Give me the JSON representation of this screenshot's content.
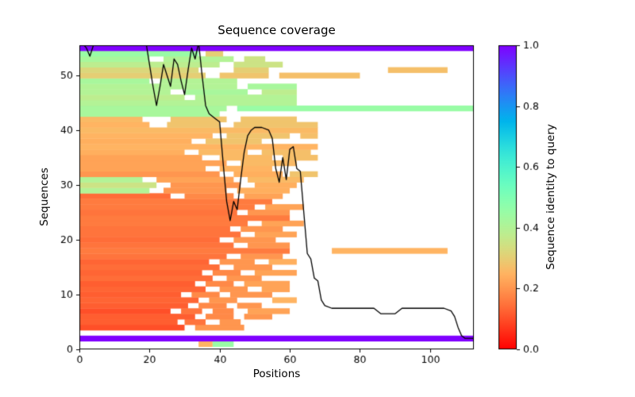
{
  "chart_data": {
    "type": "heatmap",
    "title": "Sequence coverage",
    "xlabel": "Positions",
    "ylabel": "Sequences",
    "xlim": [
      0,
      112.5
    ],
    "ylim": [
      0,
      55.5
    ],
    "xticks": [
      0,
      20,
      40,
      60,
      80,
      100
    ],
    "yticks": [
      0,
      10,
      20,
      30,
      40,
      50
    ],
    "grid": false,
    "colorbar": {
      "label": "Sequence identity to query",
      "ticks": [
        0.0,
        0.2,
        0.4,
        0.6,
        0.8,
        1.0
      ],
      "range": [
        0,
        1
      ],
      "colormap": "rainbow_r"
    },
    "line": {
      "name": "coverage",
      "color": "#000000",
      "points": [
        [
          0,
          56.5
        ],
        [
          2,
          55
        ],
        [
          3,
          53.5
        ],
        [
          4,
          55.5
        ],
        [
          6,
          56.5
        ],
        [
          8,
          57
        ],
        [
          10,
          56.5
        ],
        [
          12,
          57
        ],
        [
          14,
          56.5
        ],
        [
          16,
          57
        ],
        [
          18,
          56.5
        ],
        [
          19,
          56
        ],
        [
          20,
          52
        ],
        [
          21,
          48
        ],
        [
          22,
          44.5
        ],
        [
          23,
          48
        ],
        [
          24,
          52
        ],
        [
          25,
          50
        ],
        [
          26,
          48
        ],
        [
          27,
          53
        ],
        [
          28,
          52
        ],
        [
          29,
          49
        ],
        [
          30,
          46.5
        ],
        [
          31,
          51
        ],
        [
          32,
          55
        ],
        [
          33,
          53
        ],
        [
          34,
          56
        ],
        [
          35,
          50
        ],
        [
          36,
          44.5
        ],
        [
          37,
          43
        ],
        [
          38,
          42.5
        ],
        [
          39,
          42
        ],
        [
          40,
          41.5
        ],
        [
          41,
          34
        ],
        [
          42,
          27
        ],
        [
          43,
          23.5
        ],
        [
          44,
          27
        ],
        [
          45,
          25.5
        ],
        [
          46,
          31
        ],
        [
          47,
          36
        ],
        [
          48,
          39
        ],
        [
          49,
          40
        ],
        [
          50,
          40.5
        ],
        [
          52,
          40.5
        ],
        [
          54,
          40
        ],
        [
          55,
          38.5
        ],
        [
          56,
          33
        ],
        [
          57,
          30.5
        ],
        [
          58,
          35
        ],
        [
          59,
          31
        ],
        [
          60,
          36.5
        ],
        [
          61,
          37
        ],
        [
          62,
          33
        ],
        [
          63,
          32.5
        ],
        [
          64,
          25
        ],
        [
          65,
          17.5
        ],
        [
          66,
          16.5
        ],
        [
          67,
          13
        ],
        [
          68,
          12.5
        ],
        [
          69,
          9
        ],
        [
          70,
          8
        ],
        [
          72,
          7.5
        ],
        [
          75,
          7.5
        ],
        [
          80,
          7.5
        ],
        [
          84,
          7.5
        ],
        [
          85,
          7
        ],
        [
          86,
          6.5
        ],
        [
          88,
          6.5
        ],
        [
          90,
          6.5
        ],
        [
          91,
          7
        ],
        [
          92,
          7.5
        ],
        [
          95,
          7.5
        ],
        [
          100,
          7.5
        ],
        [
          104,
          7.5
        ],
        [
          106,
          7
        ],
        [
          107,
          6
        ],
        [
          108,
          4
        ],
        [
          109,
          2.5
        ],
        [
          110,
          2
        ],
        [
          112.5,
          2
        ]
      ]
    },
    "rows": [
      {
        "y": 1,
        "segments": [
          [
            34,
            38,
            0.25
          ],
          [
            38,
            44,
            0.45
          ]
        ]
      },
      {
        "y": 2,
        "segments": [
          [
            0,
            112.5,
            1.0
          ]
        ]
      },
      {
        "y": 4,
        "segments": [
          [
            0,
            30,
            0.1
          ],
          [
            33,
            47,
            0.2
          ]
        ]
      },
      {
        "y": 5,
        "segments": [
          [
            0,
            28,
            0.12
          ],
          [
            30,
            36,
            0.15
          ],
          [
            40,
            46,
            0.2
          ]
        ]
      },
      {
        "y": 6,
        "segments": [
          [
            0,
            33,
            0.12
          ],
          [
            36,
            44,
            0.18
          ],
          [
            47,
            55,
            0.2
          ]
        ]
      },
      {
        "y": 7,
        "segments": [
          [
            0,
            26,
            0.1
          ],
          [
            29,
            35,
            0.15
          ],
          [
            38,
            44,
            0.18
          ],
          [
            48,
            60,
            0.22
          ]
        ]
      },
      {
        "y": 8,
        "segments": [
          [
            0,
            31,
            0.12
          ],
          [
            34,
            42,
            0.18
          ],
          [
            45,
            52,
            0.2
          ]
        ]
      },
      {
        "y": 9,
        "segments": [
          [
            0,
            34,
            0.13
          ],
          [
            37,
            45,
            0.2
          ],
          [
            55,
            62,
            0.25
          ]
        ]
      },
      {
        "y": 10,
        "segments": [
          [
            0,
            29,
            0.12
          ],
          [
            32,
            40,
            0.18
          ],
          [
            43,
            55,
            0.2
          ]
        ]
      },
      {
        "y": 11,
        "segments": [
          [
            0,
            36,
            0.13
          ],
          [
            40,
            48,
            0.2
          ],
          [
            52,
            60,
            0.22
          ]
        ]
      },
      {
        "y": 12,
        "segments": [
          [
            0,
            33,
            0.12
          ],
          [
            36,
            44,
            0.18
          ],
          [
            47,
            60,
            0.22
          ]
        ]
      },
      {
        "y": 13,
        "segments": [
          [
            0,
            38,
            0.14
          ],
          [
            42,
            52,
            0.2
          ]
        ]
      },
      {
        "y": 14,
        "segments": [
          [
            0,
            35,
            0.13
          ],
          [
            38,
            46,
            0.18
          ],
          [
            50,
            62,
            0.22
          ]
        ]
      },
      {
        "y": 15,
        "segments": [
          [
            0,
            40,
            0.14
          ],
          [
            44,
            55,
            0.2
          ]
        ]
      },
      {
        "y": 16,
        "segments": [
          [
            0,
            37,
            0.13
          ],
          [
            40,
            50,
            0.2
          ],
          [
            54,
            62,
            0.24
          ]
        ]
      },
      {
        "y": 17,
        "segments": [
          [
            0,
            42,
            0.15
          ],
          [
            46,
            58,
            0.2
          ]
        ]
      },
      {
        "y": 18,
        "segments": [
          [
            0,
            60,
            0.16
          ],
          [
            72,
            105,
            0.25
          ]
        ]
      },
      {
        "y": 19,
        "segments": [
          [
            0,
            44,
            0.15
          ],
          [
            48,
            60,
            0.2
          ]
        ]
      },
      {
        "y": 20,
        "segments": [
          [
            0,
            40,
            0.14
          ],
          [
            44,
            56,
            0.2
          ]
        ]
      },
      {
        "y": 21,
        "segments": [
          [
            0,
            46,
            0.15
          ],
          [
            50,
            62,
            0.22
          ]
        ]
      },
      {
        "y": 22,
        "segments": [
          [
            0,
            43,
            0.15
          ],
          [
            46,
            58,
            0.2
          ]
        ]
      },
      {
        "y": 23,
        "segments": [
          [
            0,
            48,
            0.16
          ],
          [
            52,
            64,
            0.22
          ]
        ]
      },
      {
        "y": 24,
        "segments": [
          [
            0,
            60,
            0.16
          ]
        ]
      },
      {
        "y": 25,
        "segments": [
          [
            0,
            45,
            0.15
          ],
          [
            48,
            60,
            0.2
          ]
        ]
      },
      {
        "y": 26,
        "segments": [
          [
            0,
            50,
            0.16
          ],
          [
            53,
            64,
            0.22
          ]
        ]
      },
      {
        "y": 27,
        "segments": [
          [
            0,
            55,
            0.16
          ]
        ]
      },
      {
        "y": 28,
        "segments": [
          [
            0,
            26,
            0.14
          ],
          [
            30,
            44,
            0.18
          ],
          [
            47,
            58,
            0.22
          ]
        ]
      },
      {
        "y": 29,
        "segments": [
          [
            0,
            20,
            0.4
          ],
          [
            24,
            42,
            0.2
          ],
          [
            45,
            60,
            0.24
          ]
        ]
      },
      {
        "y": 30,
        "segments": [
          [
            0,
            22,
            0.35
          ],
          [
            26,
            46,
            0.2
          ],
          [
            50,
            62,
            0.24
          ]
        ]
      },
      {
        "y": 31,
        "segments": [
          [
            0,
            18,
            0.4
          ],
          [
            22,
            44,
            0.22
          ],
          [
            48,
            64,
            0.26
          ]
        ]
      },
      {
        "y": 32,
        "segments": [
          [
            0,
            40,
            0.2
          ],
          [
            44,
            58,
            0.24
          ],
          [
            60,
            68,
            0.28
          ]
        ]
      },
      {
        "y": 33,
        "segments": [
          [
            0,
            36,
            0.22
          ],
          [
            40,
            55,
            0.25
          ]
        ]
      },
      {
        "y": 34,
        "segments": [
          [
            0,
            42,
            0.22
          ],
          [
            46,
            62,
            0.26
          ]
        ]
      },
      {
        "y": 35,
        "segments": [
          [
            0,
            35,
            0.22
          ],
          [
            40,
            55,
            0.26
          ],
          [
            58,
            68,
            0.27
          ]
        ]
      },
      {
        "y": 36,
        "segments": [
          [
            0,
            30,
            0.24
          ],
          [
            34,
            48,
            0.26
          ],
          [
            52,
            66,
            0.27
          ]
        ]
      },
      {
        "y": 37,
        "segments": [
          [
            0,
            68,
            0.25
          ]
        ]
      },
      {
        "y": 38,
        "segments": [
          [
            0,
            32,
            0.24
          ],
          [
            36,
            52,
            0.28
          ]
        ]
      },
      {
        "y": 39,
        "segments": [
          [
            0,
            38,
            0.25
          ],
          [
            42,
            60,
            0.28
          ],
          [
            63,
            68,
            0.27
          ]
        ]
      },
      {
        "y": 40,
        "segments": [
          [
            0,
            68,
            0.26
          ]
        ]
      },
      {
        "y": 41,
        "segments": [
          [
            0,
            20,
            0.25
          ],
          [
            25,
            40,
            0.28
          ],
          [
            44,
            68,
            0.28
          ]
        ]
      },
      {
        "y": 42,
        "segments": [
          [
            0,
            18,
            0.26
          ],
          [
            26,
            42,
            0.28
          ],
          [
            46,
            62,
            0.28
          ]
        ]
      },
      {
        "y": 43,
        "segments": [
          [
            0,
            40,
            0.42
          ]
        ]
      },
      {
        "y": 44,
        "segments": [
          [
            0,
            42,
            0.42
          ],
          [
            45,
            112.5,
            0.45
          ]
        ]
      },
      {
        "y": 45,
        "segments": [
          [
            0,
            62,
            0.4
          ]
        ]
      },
      {
        "y": 46,
        "segments": [
          [
            0,
            30,
            0.38
          ],
          [
            33,
            62,
            0.4
          ]
        ]
      },
      {
        "y": 47,
        "segments": [
          [
            0,
            26,
            0.4
          ],
          [
            30,
            48,
            0.42
          ],
          [
            52,
            62,
            0.38
          ]
        ]
      },
      {
        "y": 48,
        "segments": [
          [
            0,
            45,
            0.4
          ],
          [
            48,
            62,
            0.42
          ]
        ]
      },
      {
        "y": 49,
        "segments": [
          [
            0,
            20,
            0.42
          ],
          [
            23,
            45,
            0.4
          ]
        ]
      },
      {
        "y": 50,
        "segments": [
          [
            0,
            36,
            0.3
          ],
          [
            40,
            54,
            0.28
          ],
          [
            57,
            80,
            0.27
          ]
        ]
      },
      {
        "y": 51,
        "segments": [
          [
            0,
            34,
            0.32
          ],
          [
            44,
            54,
            0.3
          ],
          [
            88,
            105,
            0.27
          ]
        ]
      },
      {
        "y": 52,
        "segments": [
          [
            0,
            40,
            0.38
          ],
          [
            44,
            58,
            0.35
          ]
        ]
      },
      {
        "y": 53,
        "segments": [
          [
            0,
            20,
            0.42
          ],
          [
            24,
            44,
            0.4
          ],
          [
            47,
            53,
            0.35
          ]
        ]
      },
      {
        "y": 54,
        "segments": [
          [
            0,
            34,
            0.45
          ],
          [
            36,
            41,
            0.3
          ]
        ]
      },
      {
        "y": 55,
        "segments": [
          [
            0,
            112.5,
            1.0
          ]
        ]
      }
    ]
  }
}
